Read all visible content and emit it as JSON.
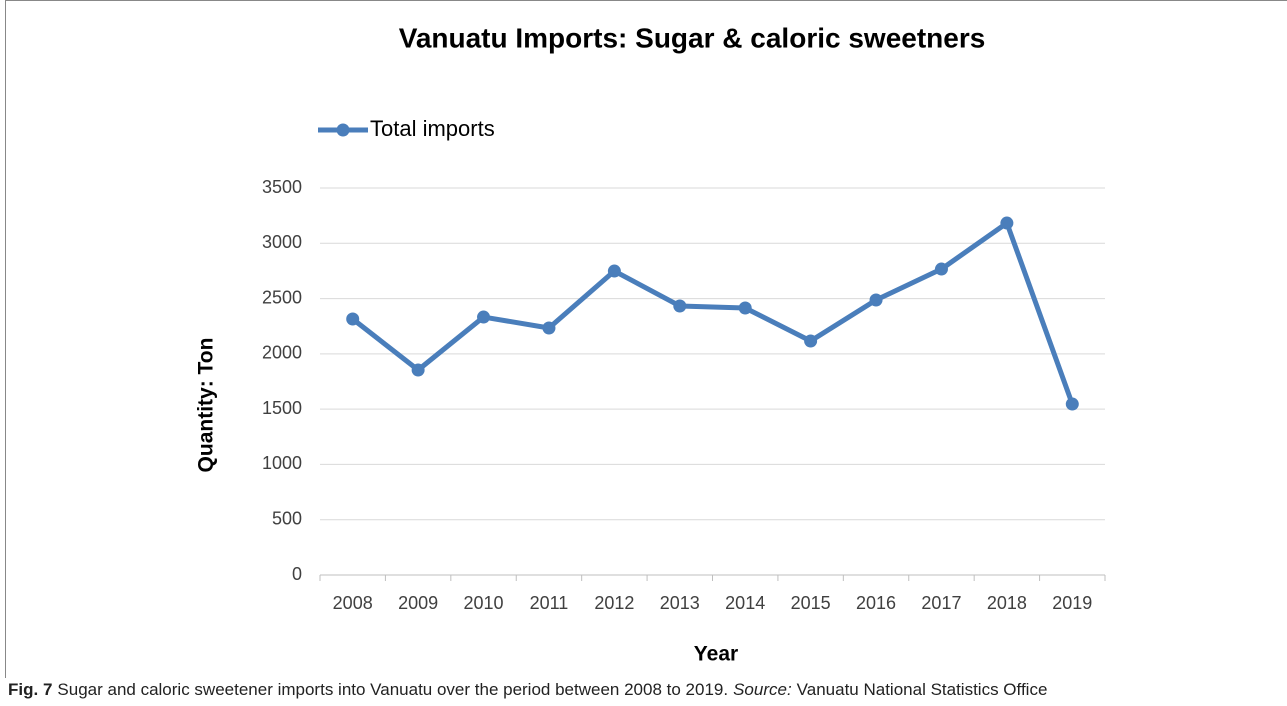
{
  "chart_data": {
    "type": "line",
    "title": "Vanuatu Imports: Sugar & caloric sweetners",
    "xlabel": "Year",
    "ylabel": "Quantity: Ton",
    "categories": [
      "2008",
      "2009",
      "2010",
      "2011",
      "2012",
      "2013",
      "2014",
      "2015",
      "2016",
      "2017",
      "2018",
      "2019"
    ],
    "series": [
      {
        "name": "Total imports",
        "color": "#4a7ebb",
        "values": [
          2315,
          1854,
          2333,
          2234,
          2749,
          2433,
          2415,
          2116,
          2487,
          2767,
          3183,
          1546
        ]
      }
    ],
    "ylim": [
      0,
      3500
    ],
    "yticks": [
      0,
      500,
      1000,
      1500,
      2000,
      2500,
      3000,
      3500
    ],
    "grid": true,
    "legend": "top-left"
  },
  "caption": {
    "label": "Fig. 7",
    "text": "Sugar and caloric sweetener imports into Vanuatu over the period between 2008 to 2019.",
    "source_label": "Source:",
    "source": "Vanuatu National Statistics Office"
  }
}
